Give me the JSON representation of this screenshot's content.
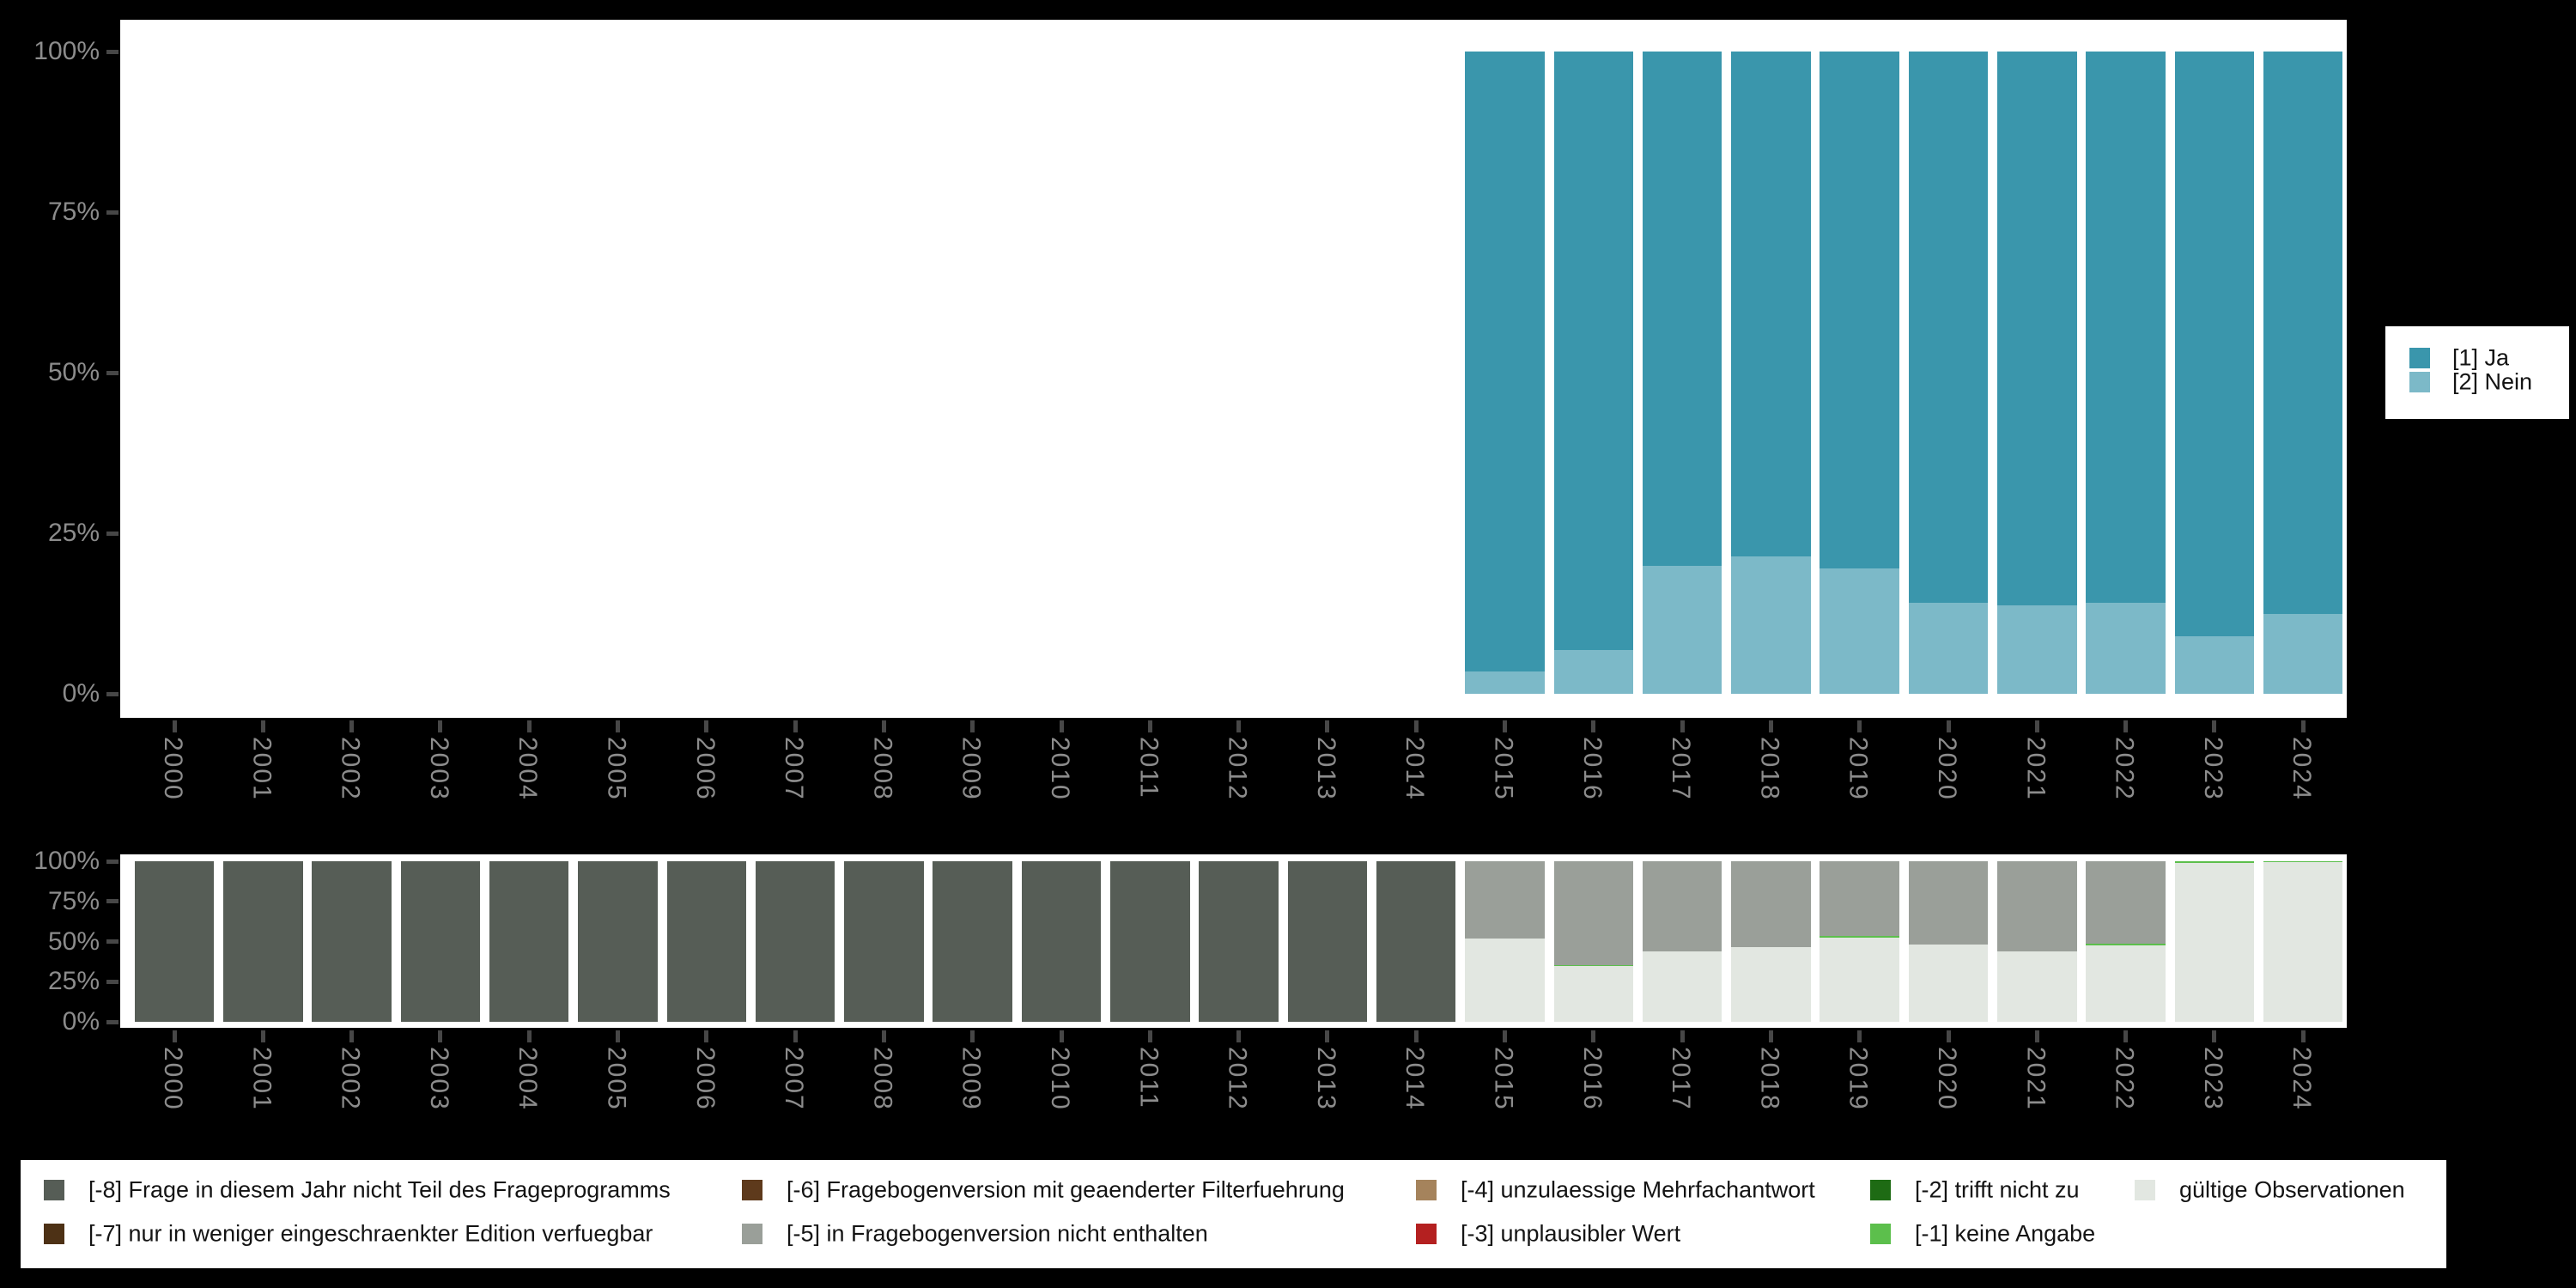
{
  "page": {
    "background": "#000000",
    "panel_background": "#ffffff"
  },
  "colors": {
    "ja": "#3a96ac",
    "nein": "#7cb9c8",
    "m8": "#565d56",
    "m7": "#4d3115",
    "m6": "#5e3a1c",
    "m5": "#9a9f99",
    "m4": "#a5835c",
    "m3": "#b42020",
    "m2": "#1e6b14",
    "m1": "#5cbf4c",
    "valid": "#e2e7e1",
    "axis_label": "#8c8c8c",
    "axis_tick": "#474747",
    "legend_text": "#141414"
  },
  "top_legend": {
    "position": "right",
    "items": [
      {
        "label": "[1] Ja",
        "color": "ja"
      },
      {
        "label": "[2] Nein",
        "color": "nein"
      }
    ]
  },
  "bottom_legend": {
    "position": "bottom",
    "columns": [
      {
        "items": [
          {
            "label": "[-8] Frage in diesem Jahr nicht Teil des Frageprogramms",
            "color": "m8"
          },
          {
            "label": "[-7] nur in weniger eingeschraenkter Edition verfuegbar",
            "color": "m7"
          }
        ]
      },
      {
        "items": [
          {
            "label": "[-6] Fragebogenversion mit geaenderter Filterfuehrung",
            "color": "m6"
          },
          {
            "label": "[-5] in Fragebogenversion nicht enthalten",
            "color": "m5"
          }
        ]
      },
      {
        "items": [
          {
            "label": "[-4] unzulaessige Mehrfachantwort",
            "color": "m4"
          },
          {
            "label": "[-3] unplausibler Wert",
            "color": "m3"
          }
        ]
      },
      {
        "items": [
          {
            "label": "[-2] trifft nicht zu",
            "color": "m2"
          },
          {
            "label": "[-1] keine Angabe",
            "color": "m1"
          }
        ]
      },
      {
        "items": [
          {
            "label": "gültige Observationen",
            "color": "valid"
          }
        ]
      }
    ]
  },
  "chart_data": [
    {
      "type": "bar",
      "stacked": true,
      "title": "",
      "xlabel": "",
      "ylabel": "",
      "unit": "percent",
      "ylim": [
        0,
        100
      ],
      "grid": false,
      "legend_position": "right",
      "y_tick_labels": [
        "100%",
        "75%",
        "50%",
        "25%",
        "0%"
      ],
      "categories": [
        "2000",
        "2001",
        "2002",
        "2003",
        "2004",
        "2005",
        "2006",
        "2007",
        "2008",
        "2009",
        "2010",
        "2011",
        "2012",
        "2013",
        "2014",
        "2015",
        "2016",
        "2017",
        "2018",
        "2019",
        "2020",
        "2021",
        "2022",
        "2023",
        "2024"
      ],
      "series": [
        {
          "name": "[1] Ja",
          "color": "ja",
          "values": [
            null,
            null,
            null,
            null,
            null,
            null,
            null,
            null,
            null,
            null,
            null,
            null,
            null,
            null,
            null,
            96.5,
            93.2,
            80.1,
            78.6,
            80.5,
            85.8,
            86.2,
            85.8,
            91.1,
            87.5
          ]
        },
        {
          "name": "[2] Nein",
          "color": "nein",
          "values": [
            null,
            null,
            null,
            null,
            null,
            null,
            null,
            null,
            null,
            null,
            null,
            null,
            null,
            null,
            null,
            3.5,
            6.8,
            19.9,
            21.4,
            19.5,
            14.2,
            13.8,
            14.2,
            8.9,
            12.5
          ]
        }
      ]
    },
    {
      "type": "bar",
      "stacked": true,
      "title": "",
      "xlabel": "",
      "ylabel": "",
      "unit": "percent",
      "ylim": [
        0,
        100
      ],
      "grid": false,
      "legend_position": "bottom",
      "y_tick_labels": [
        "100%",
        "75%",
        "50%",
        "25%",
        "0%"
      ],
      "categories": [
        "2000",
        "2001",
        "2002",
        "2003",
        "2004",
        "2005",
        "2006",
        "2007",
        "2008",
        "2009",
        "2010",
        "2011",
        "2012",
        "2013",
        "2014",
        "2015",
        "2016",
        "2017",
        "2018",
        "2019",
        "2020",
        "2021",
        "2022",
        "2023",
        "2024"
      ],
      "series": [
        {
          "name": "[-8] Frage in diesem Jahr nicht Teil des Frageprogramms",
          "color": "m8",
          "values": [
            100,
            100,
            100,
            100,
            100,
            100,
            100,
            100,
            100,
            100,
            100,
            100,
            100,
            100,
            100,
            0,
            0,
            0,
            0,
            0,
            0,
            0,
            0,
            0,
            0
          ]
        },
        {
          "name": "[-7] nur in weniger eingeschraenkter Edition verfuegbar",
          "color": "m7",
          "values": [
            0,
            0,
            0,
            0,
            0,
            0,
            0,
            0,
            0,
            0,
            0,
            0,
            0,
            0,
            0,
            0,
            0,
            0,
            0,
            0,
            0,
            0,
            0,
            0,
            0
          ]
        },
        {
          "name": "[-6] Fragebogenversion mit geaenderter Filterfuehrung",
          "color": "m6",
          "values": [
            0,
            0,
            0,
            0,
            0,
            0,
            0,
            0,
            0,
            0,
            0,
            0,
            0,
            0,
            0,
            0,
            0,
            0,
            0,
            0,
            0,
            0,
            0,
            0,
            0
          ]
        },
        {
          "name": "[-5] in Fragebogenversion nicht enthalten",
          "color": "m5",
          "values": [
            0,
            0,
            0,
            0,
            0,
            0,
            0,
            0,
            0,
            0,
            0,
            0,
            0,
            0,
            0,
            48,
            64.7,
            56,
            53.5,
            46.7,
            52,
            56,
            51.5,
            0,
            0
          ]
        },
        {
          "name": "[-4] unzulaessige Mehrfachantwort",
          "color": "m4",
          "values": [
            0,
            0,
            0,
            0,
            0,
            0,
            0,
            0,
            0,
            0,
            0,
            0,
            0,
            0,
            0,
            0,
            0,
            0,
            0,
            0,
            0,
            0,
            0,
            0,
            0
          ]
        },
        {
          "name": "[-3] unplausibler Wert",
          "color": "m3",
          "values": [
            0,
            0,
            0,
            0,
            0,
            0,
            0,
            0,
            0,
            0,
            0,
            0,
            0,
            0,
            0,
            0,
            0,
            0,
            0,
            0,
            0,
            0,
            0,
            0,
            0
          ]
        },
        {
          "name": "[-2] trifft nicht zu",
          "color": "m2",
          "values": [
            0,
            0,
            0,
            0,
            0,
            0,
            0,
            0,
            0,
            0,
            0,
            0,
            0,
            0,
            0,
            0,
            0,
            0,
            0,
            0,
            0,
            0,
            0,
            0,
            0
          ]
        },
        {
          "name": "[-1] keine Angabe",
          "color": "m1",
          "values": [
            0,
            0,
            0,
            0,
            0,
            0,
            0,
            0,
            0,
            0,
            0,
            0,
            0,
            0,
            0,
            0,
            0.8,
            0,
            0,
            0.8,
            0,
            0,
            1,
            1,
            0.8
          ]
        },
        {
          "name": "gültige Observationen",
          "color": "valid",
          "values": [
            0,
            0,
            0,
            0,
            0,
            0,
            0,
            0,
            0,
            0,
            0,
            0,
            0,
            0,
            0,
            52,
            34.5,
            44,
            46.5,
            52.5,
            48,
            44,
            47.5,
            99,
            99.2
          ]
        }
      ]
    }
  ]
}
